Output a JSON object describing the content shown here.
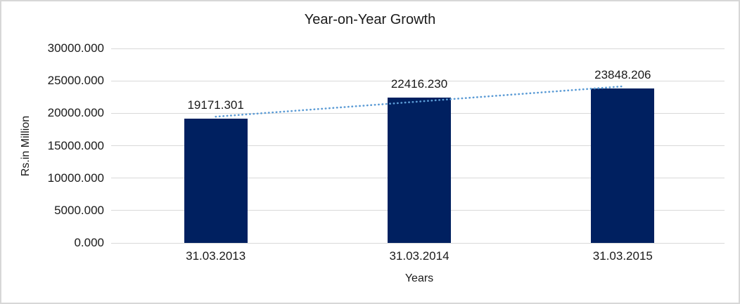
{
  "chart_data": {
    "type": "bar",
    "title": "Year-on-Year Growth",
    "xlabel": "Years",
    "ylabel": "Rs.in Million",
    "categories": [
      "31.03.2013",
      "31.03.2014",
      "31.03.2015"
    ],
    "values": [
      19171.301,
      22416.23,
      23848.206
    ],
    "data_labels": [
      "19171.301",
      "22416.230",
      "23848.206"
    ],
    "ylim": [
      0,
      30000
    ],
    "ytick_step": 5000,
    "ytick_labels": [
      "0.000",
      "5000.000",
      "10000.000",
      "15000.000",
      "20000.000",
      "25000.000",
      "30000.000"
    ],
    "grid": true,
    "legend": "none",
    "colors": {
      "bar": "#002060",
      "trendline": "#5b9bd5",
      "gridline": "#d9d9d9",
      "text": "#1a1a1a",
      "frame": "#d7d7d7"
    },
    "trendline": {
      "kind": "linear",
      "style": "dotted"
    }
  }
}
